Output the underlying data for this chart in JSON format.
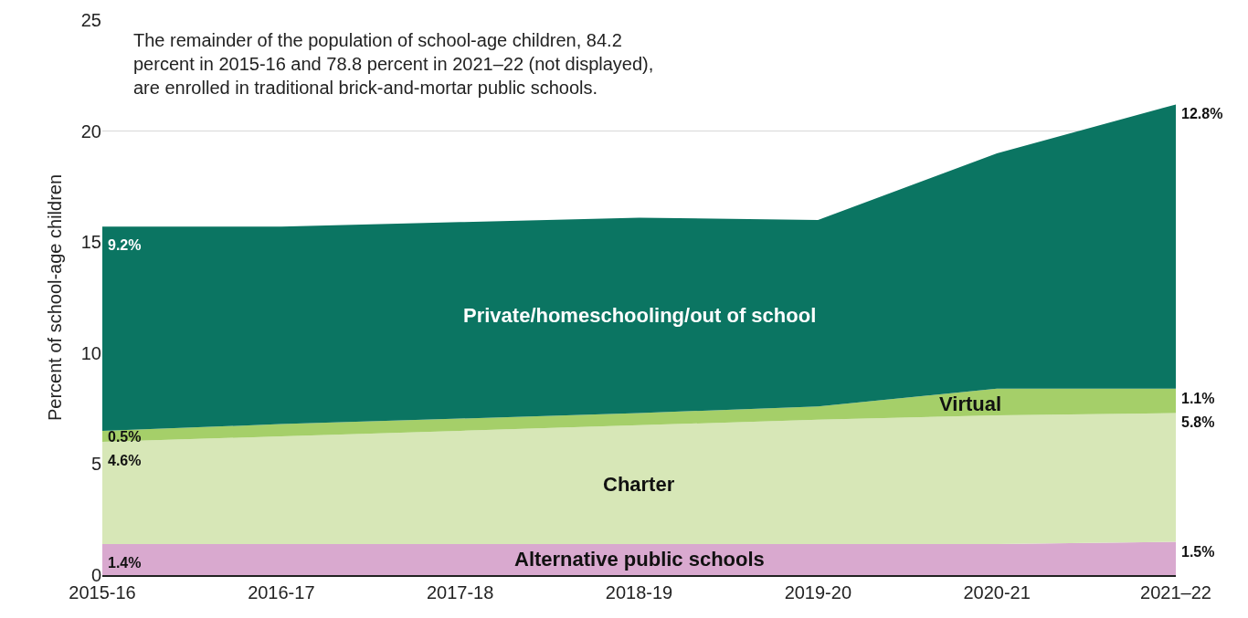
{
  "chart_data": {
    "type": "area",
    "stacked": true,
    "ylabel": "Percent of school-age children",
    "categories": [
      "2015-16",
      "2016-17",
      "2017-18",
      "2018-19",
      "2019-20",
      "2020-21",
      "2021–22"
    ],
    "series": [
      {
        "name": "Alternative public schools",
        "color": "#d9a9cf",
        "values": [
          1.4,
          1.4,
          1.4,
          1.4,
          1.4,
          1.4,
          1.5
        ],
        "value_labels": [
          "1.4%",
          null,
          null,
          null,
          null,
          null,
          "1.5%"
        ]
      },
      {
        "name": "Charter",
        "color": "#d7e7b7",
        "values": [
          4.6,
          4.85,
          5.1,
          5.35,
          5.6,
          5.8,
          5.8
        ],
        "value_labels": [
          "4.6%",
          null,
          null,
          null,
          null,
          null,
          "5.8%"
        ]
      },
      {
        "name": "Virtual",
        "color": "#a5cf69",
        "values": [
          0.5,
          0.55,
          0.55,
          0.55,
          0.6,
          1.2,
          1.1
        ],
        "value_labels": [
          "0.5%",
          null,
          null,
          null,
          null,
          null,
          "1.1%"
        ]
      },
      {
        "name": "Private/homeschooling/out of school",
        "color": "#0b7562",
        "values": [
          9.2,
          8.9,
          8.85,
          8.8,
          8.4,
          10.6,
          12.8
        ],
        "value_labels": [
          "9.2%",
          null,
          null,
          null,
          null,
          null,
          "12.8%"
        ]
      }
    ],
    "ylim": [
      0,
      25
    ],
    "yticks": [
      0,
      5,
      10,
      15,
      20,
      25
    ],
    "grid": "y",
    "annotations": [
      "The remainder of the population of school-age children, 84.2 percent in 2015-16 and 78.8 percent in 2021–22 (not displayed), are enrolled in traditional brick-and-mortar public schools."
    ]
  }
}
